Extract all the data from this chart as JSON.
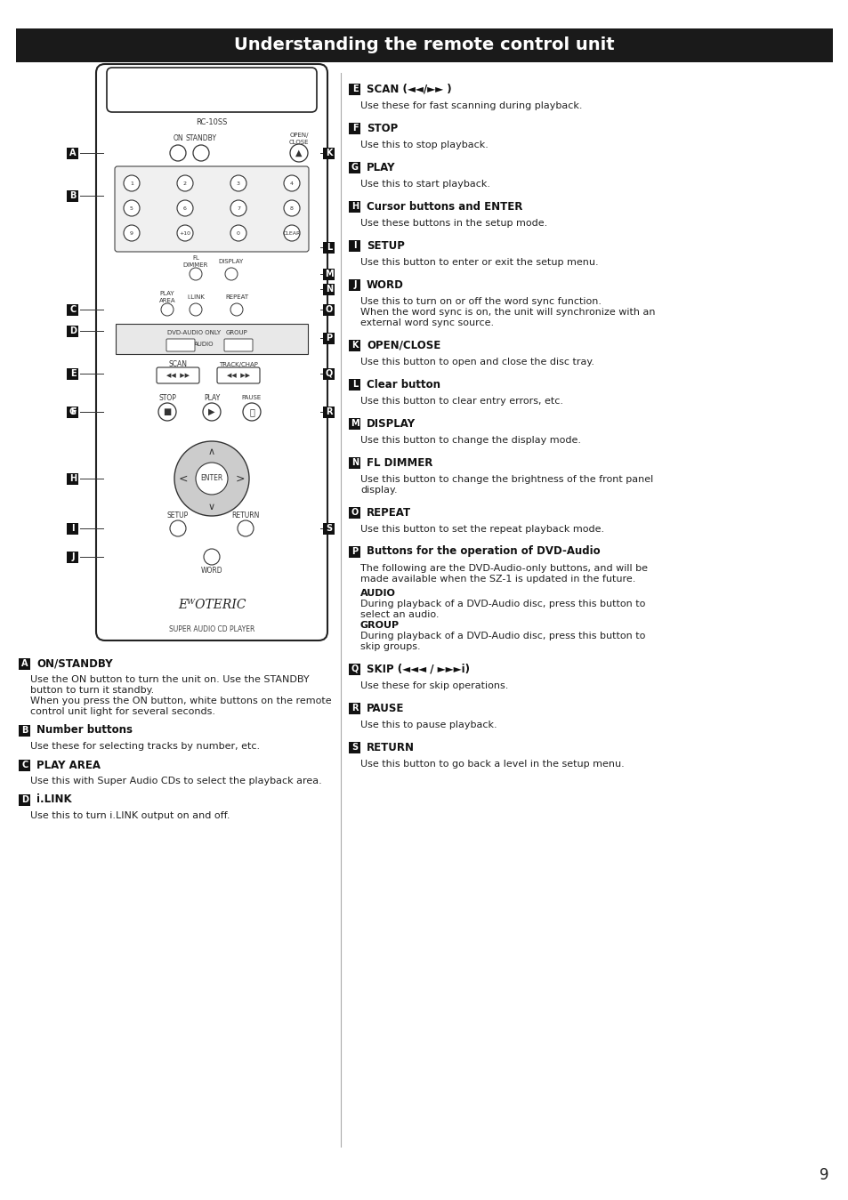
{
  "title": "Understanding the remote control unit",
  "title_bg": "#1a1a1a",
  "title_color": "#ffffff",
  "title_fontsize": 14,
  "page_bg": "#ffffff",
  "page_number": "9",
  "sections_left": [
    {
      "label": "A",
      "heading": "ON/STANDBY",
      "body": [
        "Use the ON button to turn the unit on. Use the STANDBY",
        "button to turn it standby.",
        "When you press the ON button, white buttons on the remote",
        "control unit light for several seconds."
      ]
    },
    {
      "label": "B",
      "heading": "Number buttons",
      "body": [
        "Use these for selecting tracks by number, etc."
      ]
    },
    {
      "label": "C",
      "heading": "PLAY AREA",
      "body": [
        "Use this with Super Audio CDs to select the playback area."
      ]
    },
    {
      "label": "D",
      "heading": "i.LINK",
      "body": [
        "Use this to turn i.LINK output on and off."
      ]
    }
  ],
  "sections_right": [
    {
      "label": "E",
      "heading": "SCAN (◄◄/►► )",
      "body": [
        "Use these for fast scanning during playback."
      ],
      "special": []
    },
    {
      "label": "F",
      "heading": "STOP",
      "body": [
        "Use this to stop playback."
      ],
      "special": []
    },
    {
      "label": "G",
      "heading": "PLAY",
      "body": [
        "Use this to start playback."
      ],
      "special": []
    },
    {
      "label": "H",
      "heading": "Cursor buttons and ENTER",
      "body": [
        "Use these buttons in the setup mode."
      ],
      "special": []
    },
    {
      "label": "I",
      "heading": "SETUP",
      "body": [
        "Use this button to enter or exit the setup menu."
      ],
      "special": []
    },
    {
      "label": "J",
      "heading": "WORD",
      "body": [
        "Use this to turn on or off the word sync function.",
        "When the word sync is on, the unit will synchronize with an",
        "external word sync source."
      ],
      "special": []
    },
    {
      "label": "K",
      "heading": "OPEN/CLOSE",
      "body": [
        "Use this button to open and close the disc tray."
      ],
      "special": []
    },
    {
      "label": "L",
      "heading": "Clear button",
      "body": [
        "Use this button to clear entry errors, etc."
      ],
      "special": []
    },
    {
      "label": "M",
      "heading": "DISPLAY",
      "body": [
        "Use this button to change the display mode."
      ],
      "special": []
    },
    {
      "label": "N",
      "heading": "FL DIMMER",
      "body": [
        "Use this button to change the brightness of the front panel",
        "display."
      ],
      "special": []
    },
    {
      "label": "O",
      "heading": "REPEAT",
      "body": [
        "Use this button to set the repeat playback mode."
      ],
      "special": []
    },
    {
      "label": "P",
      "heading": "Buttons for the operation of DVD-Audio",
      "body": [
        "The following are the DVD-Audio-only buttons, and will be",
        "made available when the SZ-1 is updated in the future.",
        "",
        "AUDIO",
        "During playback of a DVD-Audio disc, press this button to",
        "select an audio.",
        "GROUP",
        "During playback of a DVD-Audio disc, press this button to",
        "skip groups."
      ],
      "special": [
        "AUDIO",
        "GROUP"
      ]
    },
    {
      "label": "Q",
      "heading": "SKIP (◄◄◄ / ►►►i)",
      "body": [
        "Use these for skip operations."
      ],
      "special": []
    },
    {
      "label": "R",
      "heading": "PAUSE",
      "body": [
        "Use this to pause playback."
      ],
      "special": []
    },
    {
      "label": "S",
      "heading": "RETURN",
      "body": [
        "Use this button to go back a level in the setup menu."
      ],
      "special": []
    }
  ]
}
